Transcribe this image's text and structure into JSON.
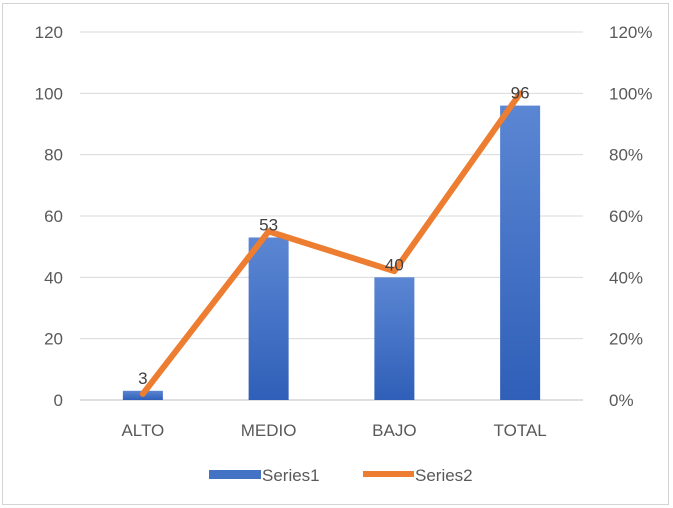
{
  "chart_data": {
    "type": "bar",
    "categories": [
      "ALTO",
      "MEDIO",
      "BAJO",
      "TOTAL"
    ],
    "series": [
      {
        "name": "Series1",
        "type": "bar",
        "axis": "primary",
        "values": [
          3,
          53,
          40,
          96
        ],
        "color": "#4472c4"
      },
      {
        "name": "Series2",
        "type": "line",
        "axis": "secondary",
        "values": [
          0.02,
          0.55,
          0.42,
          1.0
        ],
        "color": "#ed7d31"
      }
    ],
    "data_labels": [
      "3",
      "53",
      "40",
      "96"
    ],
    "y_ticks": [
      "0",
      "20",
      "40",
      "60",
      "80",
      "100",
      "120"
    ],
    "y2_ticks": [
      "0%",
      "20%",
      "40%",
      "60%",
      "80%",
      "100%",
      "120%"
    ],
    "ylim": [
      0,
      120
    ],
    "y2lim": [
      0,
      1.2
    ],
    "grid": true,
    "legend_position": "bottom"
  }
}
